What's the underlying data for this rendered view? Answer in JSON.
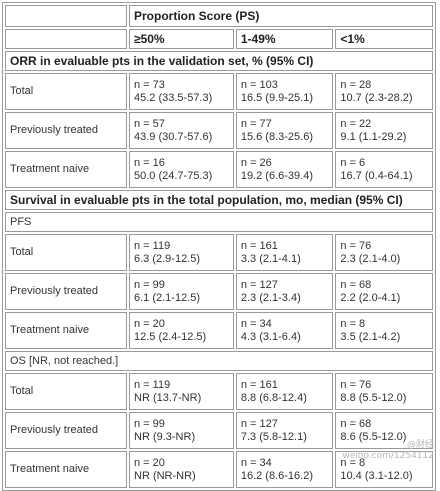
{
  "header": {
    "ps_title": "Proportion Score (PS)",
    "cols": [
      "≥50%",
      "1-49%",
      "<1%"
    ]
  },
  "sections": {
    "orr_title": "ORR in evaluable pts in the validation set, % (95% CI)",
    "survival_title": "Survival in evaluable pts in the total population, mo, median (95% CI)",
    "pfs_title": "PFS",
    "os_title": "OS [NR, not reached.]"
  },
  "orr_rows": [
    {
      "label": "Total",
      "cells": [
        [
          "n = 73",
          "45.2 (33.5-57.3)"
        ],
        [
          "n = 103",
          "16.5 (9.9-25.1)"
        ],
        [
          "n = 28",
          "10.7 (2.3-28.2)"
        ]
      ]
    },
    {
      "label": "Previously treated",
      "cells": [
        [
          "n = 57",
          "43.9 (30.7-57.6)"
        ],
        [
          "n = 77",
          "15.6 (8.3-25.6)"
        ],
        [
          "n = 22",
          "9.1 (1.1-29.2)"
        ]
      ]
    },
    {
      "label": "Treatment naive",
      "cells": [
        [
          "n = 16",
          "50.0 (24.7-75.3)"
        ],
        [
          "n = 26",
          "19.2 (6.6-39.4)"
        ],
        [
          "n = 6",
          "16.7 (0.4-64.1)"
        ]
      ]
    }
  ],
  "pfs_rows": [
    {
      "label": "Total",
      "cells": [
        [
          "n = 119",
          "6.3 (2.9-12.5)"
        ],
        [
          "n = 161",
          "3.3 (2.1-4.1)"
        ],
        [
          "n = 76",
          "2.3 (2.1-4.0)"
        ]
      ]
    },
    {
      "label": "Previously treated",
      "cells": [
        [
          "n = 99",
          "6.1 (2.1-12.5)"
        ],
        [
          "n = 127",
          "2.3 (2.1-3.4)"
        ],
        [
          "n = 68",
          "2.2 (2.0-4.1)"
        ]
      ]
    },
    {
      "label": "Treatment naive",
      "cells": [
        [
          "n = 20",
          "12.5 (2.4-12.5)"
        ],
        [
          "n = 34",
          "4.3 (3.1-6.4)"
        ],
        [
          "n = 8",
          "3.5 (2.1-4.2)"
        ]
      ]
    }
  ],
  "os_rows": [
    {
      "label": "Total",
      "cells": [
        [
          "n = 119",
          "NR (13.7-NR)"
        ],
        [
          "n = 161",
          "8.8 (6.8-12.4)"
        ],
        [
          "n = 76",
          "8.8 (5.5-12.0)"
        ]
      ]
    },
    {
      "label": "Previously treated",
      "cells": [
        [
          "n = 99",
          "NR (9.3-NR)"
        ],
        [
          "n = 127",
          "7.3 (5.8-12.1)"
        ],
        [
          "n = 68",
          "8.6 (5.5-12.0)"
        ]
      ]
    },
    {
      "label": "Treatment naive",
      "cells": [
        [
          "n = 20",
          "NR (NR-NR)"
        ],
        [
          "n = 34",
          "16.2 (8.6-16.2)"
        ],
        [
          "n = 8",
          "10.4 (3.1-12.0)"
        ]
      ]
    }
  ],
  "watermark": {
    "line1": "@财经",
    "line2": "weibo.com/1254112"
  }
}
